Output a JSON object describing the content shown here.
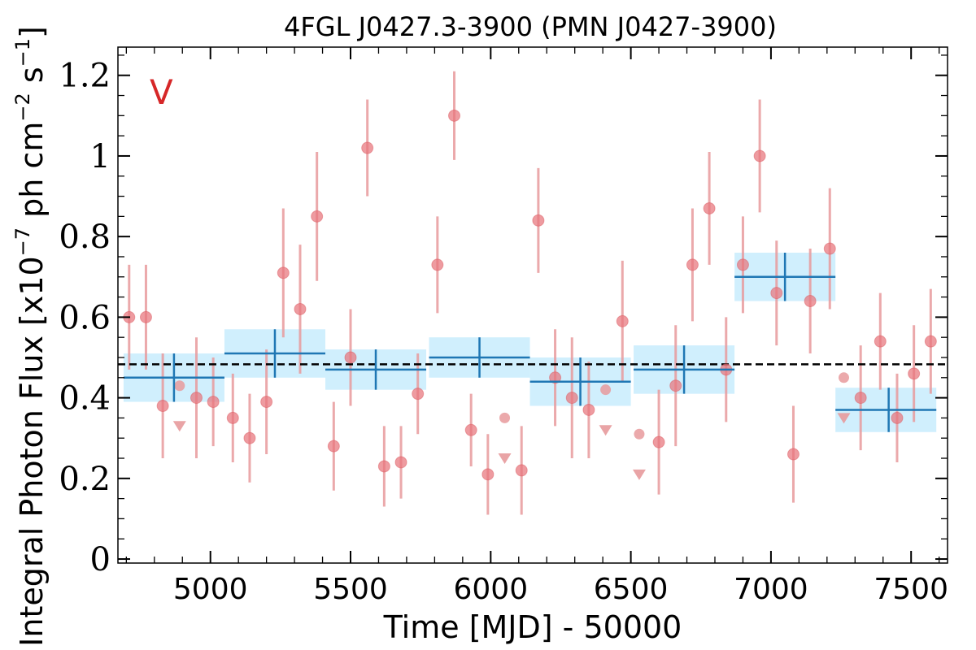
{
  "chart_data": {
    "type": "scatter",
    "title": "4FGL J0427.3-3900 (PMN J0427-3900)",
    "xlabel": "Time [MJD] - 50000",
    "ylabel_main": "Integral Photon Flux [x10",
    "ylabel_exp1": "−7",
    "ylabel_mid": " ph cm",
    "ylabel_exp2": "−2",
    "ylabel_s": " s",
    "ylabel_exp3": "−1",
    "ylabel_end": "]",
    "band_label": "V",
    "xlim": [
      4670,
      7630
    ],
    "ylim": [
      -0.01,
      1.27
    ],
    "x_ticks": [
      5000,
      5500,
      6000,
      6500,
      7000,
      7500
    ],
    "y_ticks": [
      0,
      0.2,
      0.4,
      0.6,
      0.8,
      1,
      1.2
    ],
    "y_tick_labels": [
      "0",
      "0.2",
      "0.4",
      "0.6",
      "0.8",
      "1",
      "1.2"
    ],
    "x_minor_step": 100,
    "y_minor_step": 0.05,
    "mean_flux": 0.483,
    "colors": {
      "points": "#e8747c",
      "errorbars": "#e79a9c",
      "bins": "#1f77b4",
      "bin_fill": "#cdeefd",
      "mean_line": "#000000",
      "band_label": "#d62728"
    },
    "series": [
      {
        "kind": "detections",
        "x": [
          4710,
          4770,
          4830,
          4950,
          5010,
          5080,
          5140,
          5200,
          5260,
          5320,
          5380,
          5440,
          5500,
          5560,
          5620,
          5680,
          5740,
          5810,
          5870,
          5930,
          5990,
          6110,
          6170,
          6230,
          6290,
          6350,
          6470,
          6600,
          6660,
          6720,
          6780,
          6840,
          6900,
          6960,
          7020,
          7080,
          7140,
          7210,
          7320,
          7390,
          7450,
          7510,
          7570
        ],
        "y": [
          0.6,
          0.6,
          0.38,
          0.4,
          0.39,
          0.35,
          0.3,
          0.39,
          0.71,
          0.62,
          0.85,
          0.28,
          0.5,
          1.02,
          0.23,
          0.24,
          0.41,
          0.73,
          1.1,
          0.32,
          0.21,
          0.22,
          0.84,
          0.45,
          0.4,
          0.37,
          0.59,
          0.29,
          0.43,
          0.73,
          0.87,
          0.47,
          0.73,
          1.0,
          0.66,
          0.26,
          0.64,
          0.77,
          0.4,
          0.54,
          0.35,
          0.46,
          0.54
        ],
        "err": [
          0.13,
          0.13,
          0.13,
          0.15,
          0.11,
          0.11,
          0.11,
          0.13,
          0.16,
          0.16,
          0.16,
          0.11,
          0.12,
          0.12,
          0.1,
          0.09,
          0.1,
          0.12,
          0.11,
          0.09,
          0.1,
          0.11,
          0.13,
          0.12,
          0.15,
          0.12,
          0.15,
          0.13,
          0.15,
          0.14,
          0.14,
          0.13,
          0.12,
          0.14,
          0.13,
          0.12,
          0.13,
          0.15,
          0.13,
          0.12,
          0.11,
          0.12,
          0.13
        ]
      },
      {
        "kind": "upper_limits",
        "x": [
          4890,
          6050,
          6410,
          6530,
          7260
        ],
        "y": [
          0.43,
          0.35,
          0.42,
          0.31,
          0.45
        ],
        "arrow_to": [
          0.32,
          0.24,
          0.31,
          0.2,
          0.34
        ]
      },
      {
        "kind": "binned",
        "x_low": [
          4690,
          5050,
          5410,
          5780,
          6140,
          6510,
          6870,
          7230
        ],
        "x_high": [
          5050,
          5410,
          5770,
          6140,
          6500,
          6870,
          7230,
          7590
        ],
        "x_center": [
          4870,
          5230,
          5590,
          5960,
          6320,
          6690,
          7050,
          7420
        ],
        "y": [
          0.45,
          0.51,
          0.47,
          0.5,
          0.44,
          0.47,
          0.7,
          0.37
        ],
        "err": [
          0.06,
          0.06,
          0.05,
          0.05,
          0.06,
          0.06,
          0.06,
          0.055
        ]
      }
    ]
  }
}
